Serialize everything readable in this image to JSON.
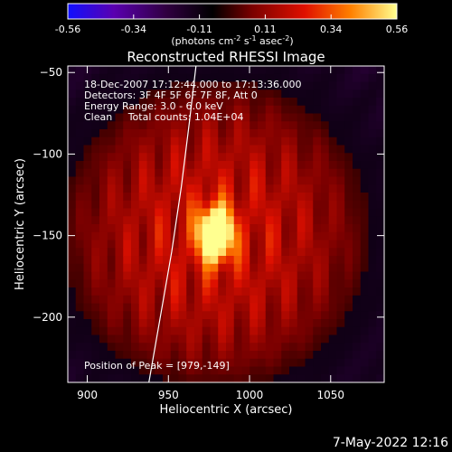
{
  "chart_data": {
    "type": "heatmap",
    "title": "Reconstructed RHESSI Image",
    "xlabel": "Heliocentric X (arcsec)",
    "ylabel": "Heliocentric Y (arcsec)",
    "xlim": [
      888,
      1083
    ],
    "ylim": [
      -240,
      -46
    ],
    "x_ticks": [
      900,
      950,
      1000,
      1050
    ],
    "y_ticks": [
      -50,
      -100,
      -150,
      -200
    ],
    "colorbar": {
      "range": [
        -0.56,
        0.56
      ],
      "ticks": [
        "-0.56",
        "-0.34",
        "-0.11",
        "0.11",
        "0.34",
        "0.56"
      ],
      "unit_parts": [
        "(photons cm",
        "-2",
        " s",
        "-1",
        " asec",
        "-2",
        ")"
      ],
      "colormap": [
        "#1010ff",
        "#5a00b0",
        "#300040",
        "#000000",
        "#7a0000",
        "#e01000",
        "#ff8000",
        "#ffff90"
      ]
    },
    "info_lines": [
      "18-Dec-2007 17:12:44.000 to 17:13:36.000",
      "Detectors: 3F 4F 5F 6F 7F 8F, Att 0",
      "Energy Range: 3.0 - 6.0 keV",
      "Clean     Total counts: 1.04E+04"
    ],
    "peak_label": "Position of Peak = [979,-149]",
    "peak_position": [
      979,
      -149
    ],
    "limb_curve": [
      [
        967,
        -46
      ],
      [
        963,
        -80
      ],
      [
        958,
        -120
      ],
      [
        952,
        -160
      ],
      [
        945,
        -200
      ],
      [
        938,
        -240
      ]
    ],
    "timestamp": "7-May-2022 12:16"
  }
}
